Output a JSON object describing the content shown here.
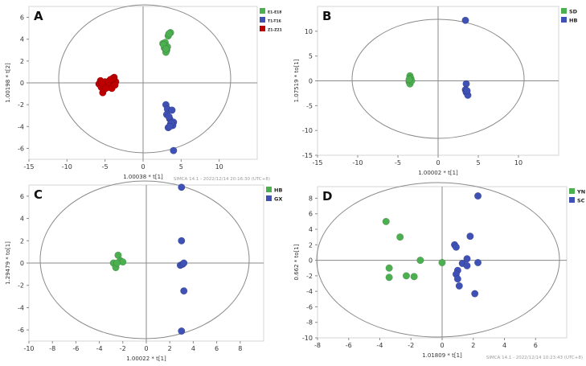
{
  "chart_data": [
    {
      "type": "scatter",
      "panel_letter": "A",
      "xlabel": "1.00038 * t[1]",
      "ylabel": "1.00198 * t[2]",
      "xlim": [
        -15,
        15
      ],
      "ylim": [
        -7,
        7
      ],
      "xticks": [
        -15,
        -10,
        -5,
        0,
        5,
        10
      ],
      "yticks": [
        -6,
        -4,
        -2,
        0,
        2,
        4,
        6
      ],
      "footer": "SIMCA 14.1 - 2022/12/14 20:16:30 (UTC+8)",
      "legend_position": "top-right",
      "series": [
        {
          "name": "E1-E18",
          "color": "#4caf50",
          "points": [
            [
              2.6,
              3.6
            ],
            [
              2.9,
              3.4
            ],
            [
              3.1,
              3.0
            ],
            [
              3.0,
              2.8
            ],
            [
              2.8,
              3.2
            ],
            [
              3.3,
              4.3
            ],
            [
              3.6,
              4.6
            ],
            [
              3.4,
              4.5
            ],
            [
              2.9,
              3.7
            ],
            [
              3.2,
              3.3
            ],
            [
              2.7,
              3.5
            ],
            [
              3.0,
              3.1
            ]
          ]
        },
        {
          "name": "T1-T16",
          "color": "#3f51b5",
          "points": [
            [
              3.0,
              -2.0
            ],
            [
              3.2,
              -2.4
            ],
            [
              3.8,
              -2.5
            ],
            [
              3.5,
              -3.3
            ],
            [
              4.0,
              -3.6
            ],
            [
              3.6,
              -3.8
            ],
            [
              3.3,
              -4.1
            ],
            [
              3.9,
              -3.9
            ],
            [
              3.1,
              -2.9
            ],
            [
              3.4,
              -3.1
            ],
            [
              3.7,
              -3.7
            ],
            [
              3.5,
              -4.0
            ],
            [
              4.0,
              -6.2
            ]
          ]
        },
        {
          "name": "Z1-Z21",
          "color": "#c00000",
          "points": [
            [
              -5.8,
              -0.1
            ],
            [
              -5.5,
              -0.4
            ],
            [
              -5.3,
              -0.9
            ],
            [
              -5.1,
              -0.6
            ],
            [
              -4.8,
              -0.2
            ],
            [
              -4.5,
              -0.4
            ],
            [
              -4.2,
              -0.1
            ],
            [
              -3.9,
              0.3
            ],
            [
              -3.6,
              0.1
            ],
            [
              -3.8,
              0.5
            ],
            [
              -4.4,
              0.2
            ],
            [
              -5.0,
              0.1
            ],
            [
              -5.6,
              0.2
            ],
            [
              -4.1,
              -0.5
            ],
            [
              -4.6,
              0.0
            ],
            [
              -3.7,
              -0.2
            ],
            [
              -5.2,
              -0.3
            ],
            [
              -4.0,
              0.4
            ],
            [
              -4.9,
              -0.5
            ],
            [
              -5.4,
              0.0
            ],
            [
              -4.3,
              0.3
            ]
          ]
        }
      ]
    },
    {
      "type": "scatter",
      "panel_letter": "B",
      "xlabel": "1.00002 * t[1]",
      "ylabel": "1.07519 * to[1]",
      "xlim": [
        -15,
        15
      ],
      "ylim": [
        -15,
        15
      ],
      "xticks": [
        -15,
        -10,
        -5,
        0,
        5,
        10
      ],
      "yticks": [
        -15,
        -10,
        -5,
        0,
        5,
        10
      ],
      "legend_position": "top-right",
      "series": [
        {
          "name": "SD",
          "color": "#4caf50",
          "points": [
            [
              -3.5,
              1.0
            ],
            [
              -3.4,
              0.5
            ],
            [
              -3.6,
              -0.2
            ],
            [
              -3.5,
              -0.6
            ],
            [
              -3.3,
              0.0
            ],
            [
              -3.6,
              0.3
            ]
          ]
        },
        {
          "name": "HB",
          "color": "#3f51b5",
          "points": [
            [
              3.4,
              12.2
            ],
            [
              3.5,
              -0.6
            ],
            [
              3.4,
              -1.8
            ],
            [
              3.5,
              -2.3
            ],
            [
              3.7,
              -2.9
            ],
            [
              3.6,
              -2.0
            ]
          ]
        }
      ]
    },
    {
      "type": "scatter",
      "panel_letter": "C",
      "xlabel": "1.00022 * t[1]",
      "ylabel": "1.29479 * to[1]",
      "xlim": [
        -10,
        10
      ],
      "ylim": [
        -7,
        7
      ],
      "xticks": [
        -10,
        -8,
        -6,
        -4,
        -2,
        0,
        2,
        4,
        6,
        8
      ],
      "yticks": [
        -6,
        -4,
        -2,
        0,
        2,
        4,
        6
      ],
      "legend_position": "top-right",
      "series": [
        {
          "name": "HB",
          "color": "#4caf50",
          "points": [
            [
              -2.8,
              0.0
            ],
            [
              -2.6,
              -0.4
            ],
            [
              -2.4,
              0.7
            ],
            [
              -2.2,
              0.2
            ],
            [
              -2.0,
              0.1
            ],
            [
              -2.5,
              0.0
            ]
          ]
        },
        {
          "name": "GX",
          "color": "#3f51b5",
          "points": [
            [
              3.0,
              6.8
            ],
            [
              3.0,
              2.0
            ],
            [
              2.9,
              -0.2
            ],
            [
              3.1,
              -0.1
            ],
            [
              3.2,
              0.0
            ],
            [
              3.2,
              -2.5
            ],
            [
              3.0,
              -6.1
            ]
          ]
        }
      ]
    },
    {
      "type": "scatter",
      "panel_letter": "D",
      "xlabel": "1.01809 * t[1]",
      "ylabel": "0.662 * to[1]",
      "xlim": [
        -8,
        8
      ],
      "ylim": [
        -10,
        9.5
      ],
      "xticks": [
        -8,
        -6,
        -4,
        -2,
        0,
        2,
        4,
        6
      ],
      "yticks": [
        -10,
        -8,
        -6,
        -4,
        -2,
        0,
        2,
        4,
        6,
        8
      ],
      "footer": "SIMCA 14.1 - 2022/12/14 10:23:43 (UTC+8)",
      "legend_position": "top-right",
      "series": [
        {
          "name": "YN",
          "color": "#4caf50",
          "points": [
            [
              -3.6,
              5.0
            ],
            [
              -2.7,
              3.0
            ],
            [
              -3.4,
              -1.0
            ],
            [
              -3.4,
              -2.2
            ],
            [
              -2.3,
              -2.0
            ],
            [
              -1.8,
              -2.1
            ],
            [
              -1.4,
              0.0
            ],
            [
              0.0,
              -0.3
            ]
          ]
        },
        {
          "name": "SC",
          "color": "#3f51b5",
          "points": [
            [
              2.3,
              8.3
            ],
            [
              1.8,
              3.1
            ],
            [
              0.8,
              2.0
            ],
            [
              0.9,
              1.7
            ],
            [
              1.6,
              0.2
            ],
            [
              1.3,
              -0.4
            ],
            [
              1.6,
              -0.7
            ],
            [
              2.3,
              -0.3
            ],
            [
              1.0,
              -1.3
            ],
            [
              0.9,
              -1.8
            ],
            [
              1.1,
              -3.3
            ],
            [
              2.1,
              -4.3
            ],
            [
              1.0,
              -2.4
            ]
          ]
        }
      ]
    }
  ]
}
